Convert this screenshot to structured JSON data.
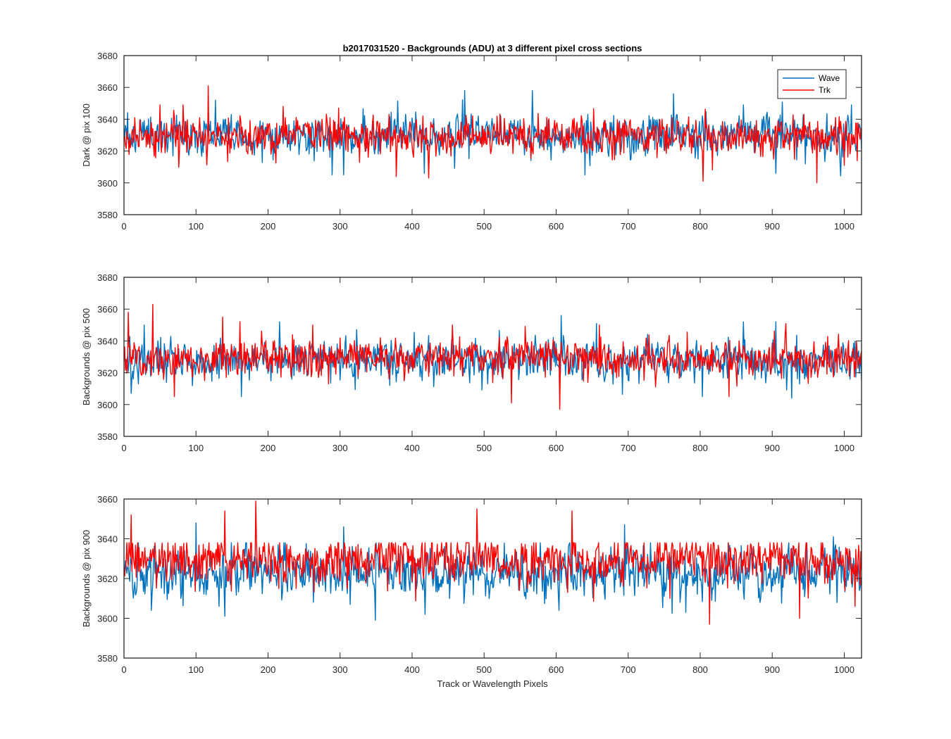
{
  "figure": {
    "title": "b2017031520 - Backgrounds (ADU) at 3 different pixel cross sections",
    "xlabel": "Track or Wavelength Pixels"
  },
  "colors": {
    "Wave": "#0072BD",
    "Trk": "#FF0000",
    "axes": "#262626",
    "background": "#ffffff"
  },
  "chart_data": [
    {
      "type": "line",
      "title": "b2017031520 - Backgrounds (ADU) at 3 different pixel cross sections",
      "ylabel": "Dark @ pix 100",
      "xlabel": "",
      "xlim": [
        0,
        1024
      ],
      "ylim": [
        3580,
        3680
      ],
      "xticks": [
        0,
        100,
        200,
        300,
        400,
        500,
        600,
        700,
        800,
        900,
        1000
      ],
      "yticks": [
        3580,
        3600,
        3620,
        3640,
        3660,
        3680
      ],
      "legend": {
        "entries": [
          "Wave",
          "Trk"
        ],
        "placement": "top-right"
      },
      "grid": false,
      "series": [
        {
          "name": "Wave",
          "x_range": [
            0,
            1024
          ],
          "mean": 3630,
          "noise_sd": 7,
          "spikes": [
            [
              127,
              3652
            ],
            [
              473,
              3658
            ],
            [
              567,
              3658
            ],
            [
              763,
              3656
            ],
            [
              860,
              3649
            ],
            [
              1010,
              3649
            ],
            [
              289,
              3605
            ],
            [
              305,
              3605
            ],
            [
              417,
              3606
            ],
            [
              640,
              3605
            ],
            [
              905,
              3606
            ]
          ]
        },
        {
          "name": "Trk",
          "x_range": [
            0,
            1024
          ],
          "mean": 3629,
          "noise_sd": 7,
          "spikes": [
            [
              117,
              3661
            ],
            [
              50,
              3649
            ],
            [
              82,
              3649
            ],
            [
              221,
              3648
            ],
            [
              298,
              3647
            ],
            [
              378,
              3604
            ],
            [
              423,
              3603
            ],
            [
              804,
              3601
            ],
            [
              962,
              3600
            ],
            [
              1000,
              3611
            ]
          ]
        }
      ]
    },
    {
      "type": "line",
      "ylabel": "Backgrounds @ pix 500",
      "xlabel": "",
      "xlim": [
        0,
        1024
      ],
      "ylim": [
        3580,
        3680
      ],
      "xticks": [
        0,
        100,
        200,
        300,
        400,
        500,
        600,
        700,
        800,
        900,
        1000
      ],
      "yticks": [
        3580,
        3600,
        3620,
        3640,
        3660,
        3680
      ],
      "grid": false,
      "series": [
        {
          "name": "Wave",
          "x_range": [
            0,
            1024
          ],
          "mean": 3628,
          "noise_sd": 7,
          "spikes": [
            [
              28,
              3650
            ],
            [
              216,
              3652
            ],
            [
              607,
              3656
            ],
            [
              656,
              3651
            ],
            [
              860,
              3652
            ],
            [
              905,
              3652
            ],
            [
              10,
              3607
            ],
            [
              163,
              3605
            ],
            [
              803,
              3605
            ],
            [
              927,
              3604
            ]
          ]
        },
        {
          "name": "Trk",
          "x_range": [
            0,
            1024
          ],
          "mean": 3629,
          "noise_sd": 7,
          "spikes": [
            [
              6,
              3658
            ],
            [
              40,
              3663
            ],
            [
              137,
              3655
            ],
            [
              262,
              3650
            ],
            [
              456,
              3650
            ],
            [
              660,
              3650
            ],
            [
              70,
              3605
            ],
            [
              538,
              3601
            ],
            [
              605,
              3597
            ],
            [
              840,
              3605
            ]
          ]
        }
      ]
    },
    {
      "type": "line",
      "ylabel": "Backgrounds @ pix 900",
      "xlabel": "Track or Wavelength Pixels",
      "xlim": [
        0,
        1024
      ],
      "ylim": [
        3580,
        3660
      ],
      "xticks": [
        0,
        100,
        200,
        300,
        400,
        500,
        600,
        700,
        800,
        900,
        1000
      ],
      "yticks": [
        3580,
        3600,
        3620,
        3640,
        3660
      ],
      "grid": false,
      "series": [
        {
          "name": "Wave",
          "x_range": [
            0,
            1024
          ],
          "mean": 3623,
          "noise_sd": 7,
          "spikes": [
            [
              38,
              3604
            ],
            [
              140,
              3601
            ],
            [
              349,
              3599
            ],
            [
              418,
              3602
            ],
            [
              604,
              3604
            ],
            [
              780,
              3603
            ],
            [
              100,
              3648
            ],
            [
              305,
              3646
            ],
            [
              695,
              3647
            ],
            [
              985,
              3641
            ]
          ]
        },
        {
          "name": "Trk",
          "x_range": [
            0,
            1024
          ],
          "mean": 3629,
          "noise_sd": 7,
          "spikes": [
            [
              183,
              3659
            ],
            [
              140,
              3654
            ],
            [
              490,
              3655
            ],
            [
              622,
              3654
            ],
            [
              10,
              3652
            ],
            [
              813,
              3597
            ],
            [
              938,
              3600
            ],
            [
              1015,
              3606
            ]
          ]
        }
      ]
    }
  ]
}
